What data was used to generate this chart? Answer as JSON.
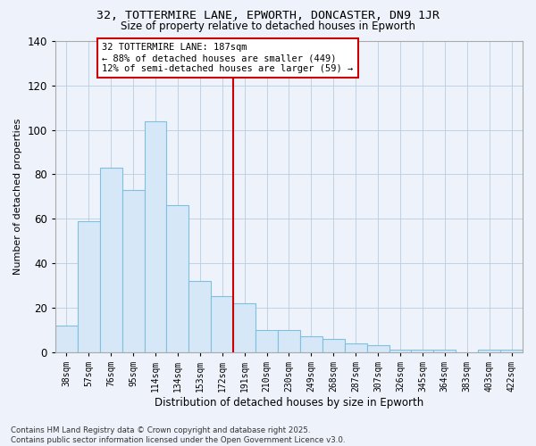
{
  "title1": "32, TOTTERMIRE LANE, EPWORTH, DONCASTER, DN9 1JR",
  "title2": "Size of property relative to detached houses in Epworth",
  "xlabel": "Distribution of detached houses by size in Epworth",
  "ylabel": "Number of detached properties",
  "bin_labels": [
    "38sqm",
    "57sqm",
    "76sqm",
    "95sqm",
    "114sqm",
    "134sqm",
    "153sqm",
    "172sqm",
    "191sqm",
    "210sqm",
    "230sqm",
    "249sqm",
    "268sqm",
    "287sqm",
    "307sqm",
    "326sqm",
    "345sqm",
    "364sqm",
    "383sqm",
    "403sqm",
    "422sqm"
  ],
  "bar_heights": [
    12,
    59,
    83,
    73,
    104,
    66,
    32,
    25,
    22,
    10,
    10,
    7,
    6,
    4,
    3,
    1,
    1,
    1,
    0,
    1,
    1
  ],
  "bar_color": "#d6e8f7",
  "bar_edge_color": "#7fbfdf",
  "vline_x": 8.0,
  "vline_color": "#cc0000",
  "annotation_text": "32 TOTTERMIRE LANE: 187sqm\n← 88% of detached houses are smaller (449)\n12% of semi-detached houses are larger (59) →",
  "annotation_box_color": "#ffffff",
  "annotation_box_edge": "#cc0000",
  "ylim": [
    0,
    140
  ],
  "yticks": [
    0,
    20,
    40,
    60,
    80,
    100,
    120,
    140
  ],
  "footer1": "Contains HM Land Registry data © Crown copyright and database right 2025.",
  "footer2": "Contains public sector information licensed under the Open Government Licence v3.0.",
  "bg_color": "#eef2fb"
}
